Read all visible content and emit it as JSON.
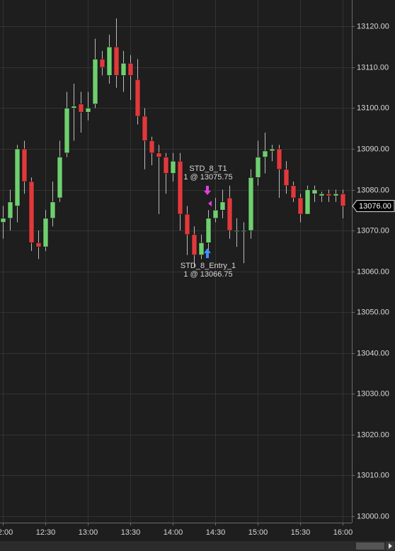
{
  "chart_data": {
    "type": "candlestick",
    "x": [
      720,
      725,
      730,
      735,
      740,
      745,
      750,
      755,
      760,
      765,
      770,
      775,
      780,
      785,
      790,
      795,
      800,
      805,
      810,
      815,
      820,
      825,
      830,
      835,
      840,
      845,
      850,
      855,
      860,
      865,
      870,
      875,
      880,
      885,
      890,
      895,
      900,
      905,
      910,
      915,
      920,
      925,
      930,
      935,
      940,
      945,
      950,
      955,
      960
    ],
    "open": [
      13072,
      13073,
      13076,
      13090,
      13082,
      13067,
      13066,
      13073,
      13078,
      13089,
      13100,
      13101,
      13099,
      13101,
      13112,
      13108,
      13115,
      13108,
      13111,
      13107,
      13098,
      13092,
      13089,
      13088,
      13084,
      13087,
      13074,
      13069,
      13064,
      13067,
      13073,
      13075,
      13078,
      13070,
      13070,
      13070,
      13083,
      13088,
      13089.5,
      13090,
      13085,
      13081,
      13078,
      13074,
      13079,
      13078.5,
      13079,
      13078.5,
      13079
    ],
    "high": [
      13076,
      13080,
      13091,
      13092,
      13083,
      13070,
      13075,
      13082,
      13092,
      13104,
      13106,
      13104,
      13104,
      13117,
      13114,
      13118,
      13122,
      13114,
      13113,
      13112,
      13100,
      13093,
      13091,
      13089,
      13089,
      13089,
      13076,
      13071,
      13069,
      13075,
      13078,
      13080,
      13081,
      13073,
      13072,
      13085,
      13092,
      13094,
      13091,
      13091,
      13087,
      13082,
      13079,
      13081,
      13081,
      13079.5,
      13080,
      13080,
      13080
    ],
    "low": [
      13068,
      13070,
      13072,
      13079,
      13065,
      13063,
      13065,
      13071,
      13077,
      13088,
      13092,
      13094,
      13097,
      13100,
      13108,
      13106,
      13105,
      13104,
      13102,
      13096,
      13085,
      13086,
      13074,
      13079,
      13082,
      13070,
      13064,
      13061,
      13063,
      13065,
      13072,
      13073,
      13068,
      13066,
      13062,
      13068,
      13081,
      13084,
      13087,
      13078,
      13079,
      13077,
      13072,
      13074,
      13077,
      13077,
      13077,
      13077,
      13073
    ],
    "close": [
      13073,
      13077,
      13090,
      13082,
      13067,
      13066,
      13073,
      13077,
      13088,
      13100,
      13100.5,
      13099,
      13100,
      13112,
      13110,
      13115,
      13108,
      13111,
      13108,
      13098,
      13092,
      13089,
      13088,
      13084,
      13087,
      13074,
      13069,
      13064,
      13067,
      13073,
      13075,
      13077,
      13070,
      13070,
      13070,
      13083,
      13088,
      13089.5,
      13090,
      13085,
      13081,
      13078,
      13074,
      13080,
      13080,
      13079,
      13078.5,
      13079,
      13076
    ],
    "up_color": "#6fcf6f",
    "down_color": "#e0393b",
    "xlim": [
      718,
      966.5
    ],
    "ylim": [
      12998.4,
      13126.5
    ],
    "xticks": [
      {
        "value": 720,
        "label": "12:00"
      },
      {
        "value": 750,
        "label": "12:30"
      },
      {
        "value": 780,
        "label": "13:00"
      },
      {
        "value": 810,
        "label": "13:30"
      },
      {
        "value": 840,
        "label": "14:00"
      },
      {
        "value": 870,
        "label": "14:30"
      },
      {
        "value": 900,
        "label": "15:00"
      },
      {
        "value": 930,
        "label": "15:30"
      },
      {
        "value": 960,
        "label": "16:00"
      }
    ],
    "yticks": [
      {
        "value": 13000,
        "label": "13000.00"
      },
      {
        "value": 13010,
        "label": "13010.00"
      },
      {
        "value": 13020,
        "label": "13020.00"
      },
      {
        "value": 13030,
        "label": "13030.00"
      },
      {
        "value": 13040,
        "label": "13040.00"
      },
      {
        "value": 13050,
        "label": "13050.00"
      },
      {
        "value": 13060,
        "label": "13060.00"
      },
      {
        "value": 13070,
        "label": "13070.00"
      },
      {
        "value": 13080,
        "label": "13080.00"
      },
      {
        "value": 13090,
        "label": "13090.00"
      },
      {
        "value": 13100,
        "label": "13100.00"
      },
      {
        "value": 13110,
        "label": "13110.00"
      },
      {
        "value": 13120,
        "label": "13120.00"
      }
    ],
    "grid": true,
    "last_price": {
      "value": 13076,
      "label": "13076.00"
    },
    "annotations": {
      "exit": {
        "name": "STD_8_T1",
        "detail": "1 @ 13075.75"
      },
      "entry": {
        "name": "STD_8_Entry_1",
        "detail": "1 @ 13066.75"
      }
    }
  }
}
